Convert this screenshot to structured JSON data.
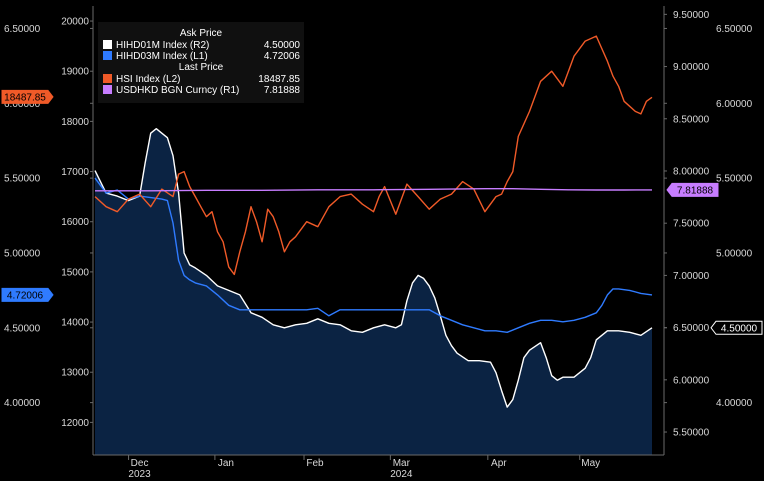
{
  "chart_data": {
    "type": "line",
    "title": "",
    "legend": {
      "placement": "top-left",
      "groups": [
        {
          "header": "Ask Price",
          "entries": [
            {
              "name": "HIHD01M Index  (R2)",
              "value": "4.50000",
              "color": "#ffffff"
            },
            {
              "name": "HIHD03M Index  (L1)",
              "value": "4.72006",
              "color": "#2f7bff"
            }
          ]
        },
        {
          "header": "Last Price",
          "entries": [
            {
              "name": "HSI Index  (L2)",
              "value": "18487.85",
              "color": "#f05a28"
            },
            {
              "name": "USDHKD BGN Curncy  (R1)",
              "value": "7.81888",
              "color": "#c77dff"
            }
          ]
        }
      ]
    },
    "axes": {
      "L1": {
        "ticks": [
          "4.00000",
          "4.50000",
          "5.00000",
          "5.50000",
          "6.00000",
          "6.50000"
        ],
        "range": [
          3.65,
          6.65
        ]
      },
      "L2": {
        "ticks": [
          "12000",
          "13000",
          "14000",
          "15000",
          "16000",
          "17000",
          "18000",
          "19000",
          "20000"
        ],
        "range": [
          11350,
          20300
        ]
      },
      "R1": {
        "ticks": [
          "5.50000",
          "6.00000",
          "6.50000",
          "7.00000",
          "7.50000",
          "8.00000",
          "8.50000",
          "9.00000",
          "9.50000"
        ],
        "range": [
          5.28,
          9.58
        ]
      },
      "R2": {
        "ticks": [
          "4.00000",
          "4.50000",
          "5.00000",
          "5.50000",
          "6.00000",
          "6.50000"
        ],
        "range": [
          3.65,
          6.65
        ]
      }
    },
    "x_labels": [
      {
        "label": "Dec",
        "t": 0.08
      },
      {
        "label": "Jan",
        "t": 0.235
      },
      {
        "label": "Feb",
        "t": 0.395
      },
      {
        "label": "Mar",
        "t": 0.55
      },
      {
        "label": "Apr",
        "t": 0.725
      },
      {
        "label": "May",
        "t": 0.89
      }
    ],
    "x_years": [
      {
        "label": "2023",
        "t": 0.08
      },
      {
        "label": "2024",
        "t": 0.55
      }
    ],
    "grid": false,
    "last_value_tags": [
      {
        "axis": "L2",
        "value": 18487.85,
        "text": "18487.85",
        "color": "#f05a28",
        "side": "left"
      },
      {
        "axis": "L1",
        "value": 4.72006,
        "text": "4.72006",
        "color": "#2f7bff",
        "side": "left"
      },
      {
        "axis": "R1",
        "value": 7.81888,
        "text": "7.81888",
        "color": "#c77dff",
        "side": "right"
      },
      {
        "axis": "R2",
        "value": 4.5,
        "text": "4.50000",
        "color": "#ffffff",
        "side": "right"
      }
    ],
    "series": [
      {
        "name": "HIHD01M Index  (R2)",
        "axis": "R2",
        "color": "#ffffff",
        "fill": "#0b2343",
        "x": [
          0,
          0.02,
          0.04,
          0.06,
          0.08,
          0.09,
          0.1,
          0.11,
          0.12,
          0.13,
          0.14,
          0.15,
          0.16,
          0.17,
          0.18,
          0.2,
          0.22,
          0.24,
          0.26,
          0.28,
          0.3,
          0.32,
          0.34,
          0.36,
          0.38,
          0.4,
          0.42,
          0.44,
          0.46,
          0.48,
          0.5,
          0.52,
          0.54,
          0.55,
          0.56,
          0.57,
          0.58,
          0.59,
          0.6,
          0.61,
          0.62,
          0.63,
          0.64,
          0.65,
          0.67,
          0.69,
          0.71,
          0.72,
          0.73,
          0.74,
          0.75,
          0.76,
          0.77,
          0.78,
          0.8,
          0.81,
          0.82,
          0.83,
          0.84,
          0.85,
          0.86,
          0.87,
          0.88,
          0.89,
          0.9,
          0.92,
          0.94,
          0.96,
          0.98,
          1
        ],
        "y": [
          5.55,
          5.4,
          5.38,
          5.35,
          5.38,
          5.6,
          5.8,
          5.83,
          5.8,
          5.77,
          5.65,
          5.4,
          5.0,
          4.92,
          4.9,
          4.85,
          4.78,
          4.75,
          4.72,
          4.6,
          4.57,
          4.52,
          4.5,
          4.52,
          4.53,
          4.56,
          4.53,
          4.52,
          4.48,
          4.47,
          4.5,
          4.52,
          4.5,
          4.52,
          4.68,
          4.8,
          4.85,
          4.83,
          4.78,
          4.7,
          4.58,
          4.45,
          4.38,
          4.33,
          4.28,
          4.28,
          4.27,
          4.2,
          4.08,
          3.97,
          4.02,
          4.15,
          4.3,
          4.35,
          4.4,
          4.3,
          4.18,
          4.15,
          4.17,
          4.17,
          4.17,
          4.2,
          4.23,
          4.3,
          4.42,
          4.48,
          4.48,
          4.47,
          4.45,
          4.5
        ]
      },
      {
        "name": "HIHD03M Index  (L1)",
        "axis": "L1",
        "color": "#2f7bff",
        "x": [
          0,
          0.02,
          0.04,
          0.06,
          0.08,
          0.1,
          0.12,
          0.13,
          0.14,
          0.15,
          0.16,
          0.17,
          0.18,
          0.2,
          0.22,
          0.24,
          0.26,
          0.3,
          0.34,
          0.38,
          0.4,
          0.42,
          0.44,
          0.46,
          0.5,
          0.54,
          0.58,
          0.6,
          0.62,
          0.64,
          0.66,
          0.68,
          0.7,
          0.72,
          0.74,
          0.76,
          0.78,
          0.8,
          0.82,
          0.84,
          0.86,
          0.88,
          0.9,
          0.91,
          0.92,
          0.93,
          0.94,
          0.96,
          0.98,
          1
        ],
        "y": [
          5.5,
          5.4,
          5.42,
          5.36,
          5.38,
          5.37,
          5.36,
          5.35,
          5.2,
          4.95,
          4.85,
          4.82,
          4.8,
          4.78,
          4.72,
          4.65,
          4.62,
          4.62,
          4.62,
          4.62,
          4.63,
          4.58,
          4.62,
          4.62,
          4.62,
          4.62,
          4.62,
          4.62,
          4.58,
          4.55,
          4.52,
          4.5,
          4.48,
          4.48,
          4.47,
          4.5,
          4.53,
          4.55,
          4.55,
          4.54,
          4.55,
          4.57,
          4.6,
          4.65,
          4.72,
          4.76,
          4.76,
          4.75,
          4.73,
          4.72
        ]
      },
      {
        "name": "HSI Index  (L2)",
        "axis": "L2",
        "color": "#f05a28",
        "x": [
          0,
          0.02,
          0.04,
          0.06,
          0.08,
          0.1,
          0.12,
          0.14,
          0.15,
          0.16,
          0.17,
          0.18,
          0.19,
          0.2,
          0.21,
          0.22,
          0.23,
          0.24,
          0.25,
          0.26,
          0.27,
          0.28,
          0.29,
          0.3,
          0.31,
          0.32,
          0.33,
          0.34,
          0.35,
          0.36,
          0.38,
          0.4,
          0.42,
          0.44,
          0.46,
          0.48,
          0.5,
          0.51,
          0.52,
          0.54,
          0.56,
          0.58,
          0.6,
          0.62,
          0.64,
          0.66,
          0.68,
          0.7,
          0.72,
          0.73,
          0.74,
          0.75,
          0.76,
          0.78,
          0.8,
          0.82,
          0.84,
          0.86,
          0.88,
          0.9,
          0.92,
          0.93,
          0.94,
          0.95,
          0.96,
          0.97,
          0.98,
          0.99,
          1
        ],
        "y": [
          16500,
          16300,
          16200,
          16450,
          16550,
          16300,
          16650,
          16500,
          16950,
          17000,
          16700,
          16500,
          16300,
          16100,
          16200,
          15800,
          15600,
          15100,
          14950,
          15400,
          15800,
          16300,
          16000,
          15600,
          16250,
          16100,
          15800,
          15400,
          15600,
          15700,
          16000,
          15900,
          16300,
          16500,
          16550,
          16350,
          16200,
          16500,
          16700,
          16150,
          16750,
          16500,
          16250,
          16450,
          16550,
          16800,
          16650,
          16200,
          16500,
          16550,
          16800,
          17000,
          17700,
          18200,
          18800,
          19000,
          18700,
          19300,
          19600,
          19700,
          19200,
          18900,
          18700,
          18400,
          18300,
          18200,
          18150,
          18400,
          18480
        ]
      },
      {
        "name": "USDHKD BGN Curncy  (R1)",
        "axis": "R1",
        "color": "#c77dff",
        "x": [
          0,
          0.1,
          0.2,
          0.3,
          0.4,
          0.5,
          0.6,
          0.7,
          0.75,
          0.8,
          0.85,
          0.9,
          0.95,
          1
        ],
        "y": [
          7.81,
          7.81,
          7.815,
          7.815,
          7.82,
          7.82,
          7.825,
          7.83,
          7.83,
          7.825,
          7.82,
          7.818,
          7.818,
          7.819
        ]
      }
    ]
  }
}
